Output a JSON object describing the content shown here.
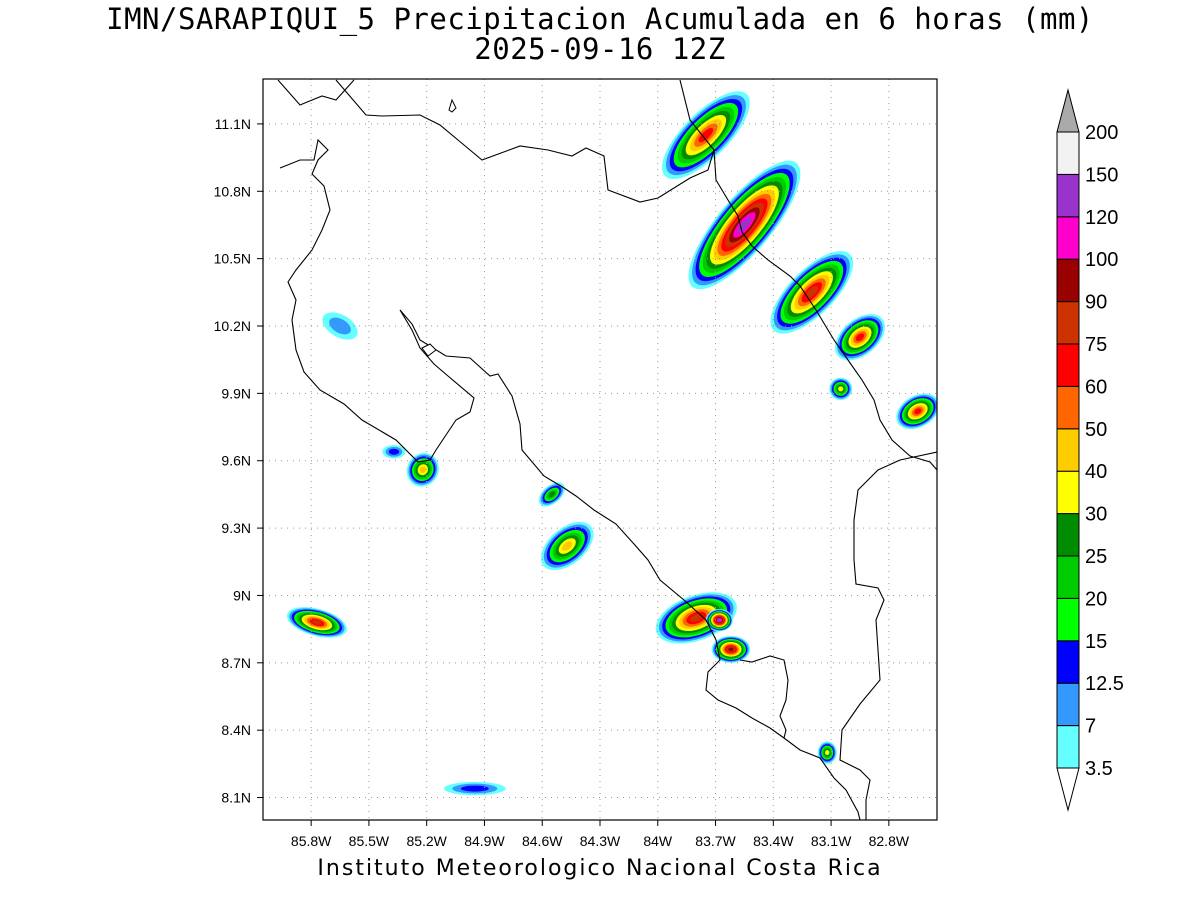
{
  "title": {
    "line1": "IMN/SARAPIQUI_5 Precipitacion Acumulada en 6 horas (mm)",
    "line2": "2025-09-16 12Z"
  },
  "footer": "Instituto Meteorologico Nacional Costa Rica",
  "map": {
    "lon_range": [
      -86.05,
      -82.55
    ],
    "lat_range": [
      8.0,
      11.3
    ],
    "lon_ticks": [
      {
        "value": -85.8,
        "label": "85.8W"
      },
      {
        "value": -85.5,
        "label": "85.5W"
      },
      {
        "value": -85.2,
        "label": "85.2W"
      },
      {
        "value": -84.9,
        "label": "84.9W"
      },
      {
        "value": -84.6,
        "label": "84.6W"
      },
      {
        "value": -84.3,
        "label": "84.3W"
      },
      {
        "value": -84.0,
        "label": "84W"
      },
      {
        "value": -83.7,
        "label": "83.7W"
      },
      {
        "value": -83.4,
        "label": "83.4W"
      },
      {
        "value": -83.1,
        "label": "83.1W"
      },
      {
        "value": -82.8,
        "label": "82.8W"
      }
    ],
    "lat_ticks": [
      {
        "value": 8.1,
        "label": "8.1N"
      },
      {
        "value": 8.4,
        "label": "8.4N"
      },
      {
        "value": 8.7,
        "label": "8.7N"
      },
      {
        "value": 9.0,
        "label": "9N"
      },
      {
        "value": 9.3,
        "label": "9.3N"
      },
      {
        "value": 9.6,
        "label": "9.6N"
      },
      {
        "value": 9.9,
        "label": "9.9N"
      },
      {
        "value": 10.2,
        "label": "10.2N"
      },
      {
        "value": 10.5,
        "label": "10.5N"
      },
      {
        "value": 10.8,
        "label": "10.8N"
      },
      {
        "value": 11.1,
        "label": "11.1N"
      }
    ],
    "grid": "dotted"
  },
  "colorbar": {
    "levels": [
      "3.5",
      "7",
      "12.5",
      "15",
      "20",
      "25",
      "30",
      "40",
      "50",
      "60",
      "75",
      "90",
      "100",
      "120",
      "150",
      "200"
    ],
    "colors": [
      "#66ffff",
      "#3399ff",
      "#0000ff",
      "#00ff00",
      "#00cc00",
      "#008c00",
      "#ffff00",
      "#ffcc00",
      "#ff6600",
      "#ff0000",
      "#cc3300",
      "#990000",
      "#ff00cc",
      "#9933cc",
      "#f2f2f2"
    ],
    "under_color": "#ffffff",
    "over_color": "#aaaaaa"
  },
  "precip_cells": [
    {
      "lon": -83.55,
      "lat": 10.65,
      "peak": 120,
      "rx": 0.42,
      "ry": 0.12,
      "rot": 50
    },
    {
      "lon": -83.75,
      "lat": 11.05,
      "peak": 60,
      "rx": 0.3,
      "ry": 0.1,
      "rot": 45
    },
    {
      "lon": -83.2,
      "lat": 10.35,
      "peak": 75,
      "rx": 0.28,
      "ry": 0.1,
      "rot": 45
    },
    {
      "lon": -82.95,
      "lat": 10.15,
      "peak": 60,
      "rx": 0.15,
      "ry": 0.08,
      "rot": 40
    },
    {
      "lon": -82.65,
      "lat": 9.82,
      "peak": 60,
      "rx": 0.12,
      "ry": 0.07,
      "rot": 30
    },
    {
      "lon": -83.05,
      "lat": 9.92,
      "peak": 30,
      "rx": 0.06,
      "ry": 0.05,
      "rot": 0
    },
    {
      "lon": -85.22,
      "lat": 9.56,
      "peak": 40,
      "rx": 0.09,
      "ry": 0.07,
      "rot": 60
    },
    {
      "lon": -84.47,
      "lat": 9.22,
      "peak": 40,
      "rx": 0.16,
      "ry": 0.08,
      "rot": 40
    },
    {
      "lon": -84.55,
      "lat": 9.45,
      "peak": 25,
      "rx": 0.08,
      "ry": 0.04,
      "rot": 40
    },
    {
      "lon": -83.8,
      "lat": 8.9,
      "peak": 75,
      "rx": 0.22,
      "ry": 0.1,
      "rot": 20
    },
    {
      "lon": -83.62,
      "lat": 8.76,
      "peak": 90,
      "rx": 0.1,
      "ry": 0.06,
      "rot": 0
    },
    {
      "lon": -83.68,
      "lat": 8.89,
      "peak": 120,
      "rx": 0.07,
      "ry": 0.05,
      "rot": 0
    },
    {
      "lon": -85.77,
      "lat": 8.88,
      "peak": 75,
      "rx": 0.16,
      "ry": 0.06,
      "rot": -15
    },
    {
      "lon": -83.12,
      "lat": 8.3,
      "peak": 30,
      "rx": 0.05,
      "ry": 0.05,
      "rot": 0
    },
    {
      "lon": -84.95,
      "lat": 8.14,
      "peak": 12.5,
      "rx": 0.16,
      "ry": 0.03,
      "rot": 0
    },
    {
      "lon": -85.65,
      "lat": 10.2,
      "peak": 7,
      "rx": 0.1,
      "ry": 0.05,
      "rot": -30
    },
    {
      "lon": -85.37,
      "lat": 9.64,
      "peak": 12.5,
      "rx": 0.06,
      "ry": 0.03,
      "rot": 0
    }
  ]
}
